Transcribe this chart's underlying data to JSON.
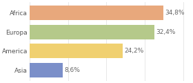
{
  "categories": [
    "Asia",
    "America",
    "Europa",
    "Africa"
  ],
  "values": [
    8.6,
    24.2,
    32.4,
    34.8
  ],
  "labels": [
    "8,6%",
    "24,2%",
    "32,4%",
    "34,8%"
  ],
  "bar_colors": [
    "#7b8fc9",
    "#f0d070",
    "#b5c98a",
    "#e8a87c"
  ],
  "background_color": "#ffffff",
  "xlim": [
    0,
    42
  ],
  "label_fontsize": 6.5,
  "tick_fontsize": 6.5,
  "grid_color": "#dddddd"
}
